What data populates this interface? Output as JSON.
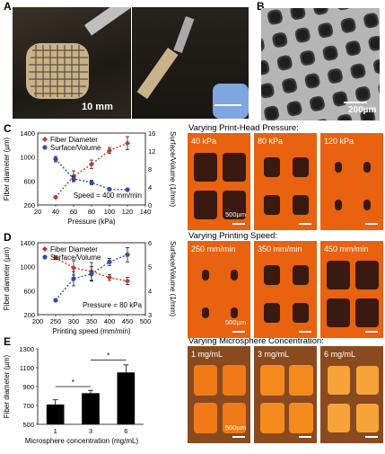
{
  "panels": {
    "A": {
      "label": "A",
      "scale": "10 mm"
    },
    "B": {
      "label": "B",
      "scale": "200µm"
    },
    "C": {
      "label": "C"
    },
    "D": {
      "label": "D"
    },
    "E": {
      "label": "E"
    }
  },
  "sections": {
    "pressure": {
      "title": "Varying Print-Head Pressure:",
      "tiles": [
        "40 kPa",
        "80 kPa",
        "120 kPa"
      ],
      "scale": "500µm"
    },
    "speed": {
      "title": "Varying Printing Speed:",
      "tiles": [
        "250 mm/min",
        "350 mm/min",
        "450 mm/min"
      ],
      "scale": "500µm"
    },
    "micro": {
      "title": "Varying Microsphere Concentration:",
      "tiles": [
        "1 mg/mL",
        "3 mg/mL",
        "6 mg/mL"
      ],
      "scale": "500µm"
    }
  },
  "chart_data": [
    {
      "type": "line",
      "panel": "C",
      "x": [
        40,
        60,
        80,
        100,
        120
      ],
      "xlabel": "Pressure (kPa)",
      "ylabel": "Fiber diameter (µm)",
      "y2label": "Surface/Volume (1/mm)",
      "xlim": [
        20,
        140
      ],
      "ylim": [
        200,
        1400
      ],
      "y2lim": [
        0,
        16
      ],
      "xticks": [
        "20",
        "40",
        "60",
        "80",
        "100",
        "120",
        "140"
      ],
      "yticks": [
        "200",
        "600",
        "1000",
        "1400"
      ],
      "y2ticks": [
        "0",
        "4",
        "8",
        "12",
        "16"
      ],
      "series": [
        {
          "name": "Fiber Diameter",
          "axis": "left",
          "color": "#c0392b",
          "marker": "diamond",
          "values": [
            330,
            680,
            880,
            1110,
            1230
          ],
          "err": [
            20,
            90,
            70,
            50,
            110
          ]
        },
        {
          "name": "Surface/Volume",
          "axis": "right",
          "color": "#2e4fa3",
          "marker": "circle",
          "values": [
            10.2,
            5.8,
            5.0,
            3.5,
            3.4
          ],
          "err": [
            0.6,
            0.6,
            0.5,
            0.2,
            0.2
          ]
        }
      ],
      "annotation": "Speed = 400 mm/min"
    },
    {
      "type": "line",
      "panel": "D",
      "x": [
        250,
        300,
        350,
        400,
        450
      ],
      "xlabel": "Printing speed (mm/min)",
      "ylabel": "Fiber diameter (µm)",
      "y2label": "Surface/Volume (1/mm)",
      "xlim": [
        200,
        500
      ],
      "ylim": [
        200,
        1400
      ],
      "y2lim": [
        3,
        6
      ],
      "xticks": [
        "200",
        "250",
        "300",
        "350",
        "400",
        "450",
        "500"
      ],
      "yticks": [
        "200",
        "600",
        "1000",
        "1400"
      ],
      "y2ticks": [
        "3",
        "4",
        "5",
        "6"
      ],
      "series": [
        {
          "name": "Fiber Diameter",
          "axis": "left",
          "color": "#c0392b",
          "marker": "diamond",
          "values": [
            1150,
            980,
            920,
            820,
            760
          ],
          "err": [
            30,
            120,
            150,
            50,
            60
          ]
        },
        {
          "name": "Surface/Volume",
          "axis": "right",
          "color": "#2e4fa3",
          "marker": "circle",
          "values": [
            3.6,
            4.5,
            4.7,
            5.2,
            5.5
          ],
          "err": [
            0.05,
            0.3,
            0.3,
            0.15,
            0.3
          ]
        }
      ],
      "annotation": "Pressure = 80 kPa"
    },
    {
      "type": "bar",
      "panel": "E",
      "categories": [
        "1",
        "3",
        "6"
      ],
      "values": [
        710,
        830,
        1050
      ],
      "err": [
        50,
        30,
        80
      ],
      "xlabel": "Microsphere concentration (mg/mL)",
      "ylabel": "Fiber diameter (µm)",
      "ylim": [
        500,
        1300
      ],
      "yticks": [
        "500",
        "700",
        "900",
        "1100",
        "1300"
      ],
      "significance": [
        "*",
        "*"
      ]
    }
  ]
}
